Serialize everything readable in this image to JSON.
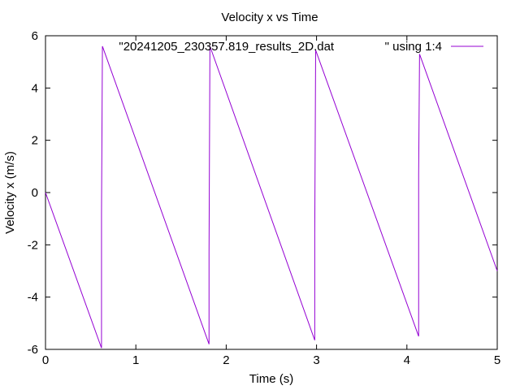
{
  "chart_data": {
    "type": "line",
    "title": "Velocity x vs Time",
    "xlabel": "Time (s)",
    "ylabel": "Velocity x (m/s)",
    "xlim": [
      0,
      5
    ],
    "ylim": [
      -6,
      6
    ],
    "xticks": [
      0,
      1,
      2,
      3,
      4,
      5
    ],
    "yticks": [
      -6,
      -4,
      -2,
      0,
      2,
      4,
      6
    ],
    "grid": false,
    "legend_position": "top-right",
    "series": [
      {
        "name": "\"20241205_230357.819_results_2D.dat               \" using 1:4",
        "color": "#9400d3",
        "x": [
          0,
          0.62,
          0.62,
          0.63,
          1.81,
          1.81,
          1.82,
          2.98,
          2.98,
          2.99,
          4.13,
          4.13,
          4.14,
          5
        ],
        "y": [
          0,
          -5.95,
          -0.8,
          5.6,
          -5.8,
          -2.3,
          5.6,
          -5.65,
          -1.6,
          5.45,
          -5.5,
          0.7,
          5.3,
          -3.0
        ]
      }
    ]
  }
}
